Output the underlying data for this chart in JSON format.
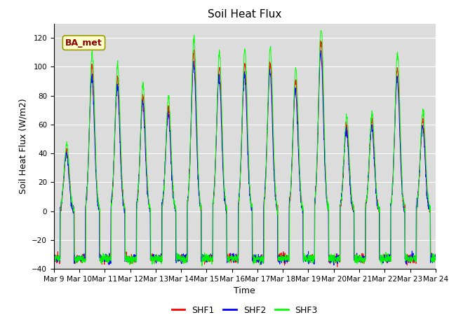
{
  "title": "Soil Heat Flux",
  "ylabel": "Soil Heat Flux (W/m2)",
  "xlabel": "Time",
  "legend_label": "BA_met",
  "series_labels": [
    "SHF1",
    "SHF2",
    "SHF3"
  ],
  "series_colors": [
    "red",
    "blue",
    "lime"
  ],
  "ylim": [
    -40,
    130
  ],
  "yticks": [
    -40,
    -20,
    0,
    20,
    40,
    60,
    80,
    100,
    120
  ],
  "background_color": "#dcdcdc",
  "n_days": 15,
  "start_day": 9,
  "points_per_day": 144,
  "legend_box_color": "#ffffcc",
  "legend_box_edge": "#999900",
  "day_amplitudes": [
    42,
    100,
    92,
    80,
    72,
    110,
    100,
    102,
    104,
    90,
    118,
    60,
    62,
    99,
    63
  ],
  "trough_depth": -33
}
